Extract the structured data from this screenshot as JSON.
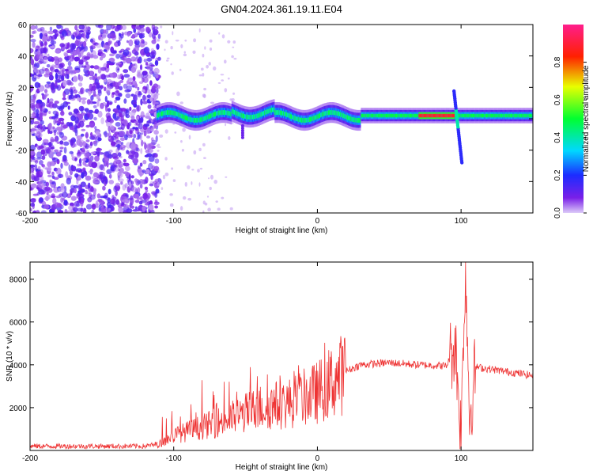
{
  "title": "GN04.2024.361.19.11.E04",
  "chart_data": [
    {
      "type": "heatmap",
      "xlabel": "Height of straight line (km)",
      "ylabel": "Frequency (Hz)",
      "xlim": [
        -200,
        150
      ],
      "ylim": [
        -60,
        60
      ],
      "xticks": [
        -200,
        -100,
        0,
        100
      ],
      "yticks": [
        -60,
        -40,
        -20,
        0,
        20,
        40,
        60
      ],
      "colorbar": {
        "label": "Normalized spectral amplitude",
        "range": [
          0,
          1
        ],
        "ticks": [
          "0.0",
          "0.2",
          "0.4",
          "0.6",
          "0.8"
        ]
      },
      "features": {
        "noise_region_x": [
          -200,
          -110
        ],
        "main_line_freq": [
          1,
          4
        ],
        "strongest_segment_x": [
          70,
          95
        ],
        "spike_x": 97
      }
    },
    {
      "type": "line",
      "xlabel": "Height of straight line (km)",
      "ylabel": "SNR (10 * v/v)",
      "xlim": [
        -200,
        150
      ],
      "ylim": [
        0,
        8800
      ],
      "xticks": [
        -200,
        -100,
        0,
        100
      ],
      "yticks": [
        2000,
        4000,
        6000,
        8000
      ],
      "color": "#ee3333",
      "envelope": {
        "x": [
          -200,
          -120,
          -110,
          -100,
          -80,
          -60,
          -40,
          -20,
          0,
          10,
          20,
          30,
          50,
          70,
          90,
          96,
          100,
          103,
          106,
          110,
          130,
          150
        ],
        "y": [
          200,
          200,
          300,
          700,
          1100,
          1500,
          2000,
          2200,
          2700,
          3200,
          3700,
          4000,
          4100,
          4000,
          3950,
          5000,
          700,
          8700,
          1500,
          3900,
          3700,
          3500
        ]
      }
    }
  ]
}
